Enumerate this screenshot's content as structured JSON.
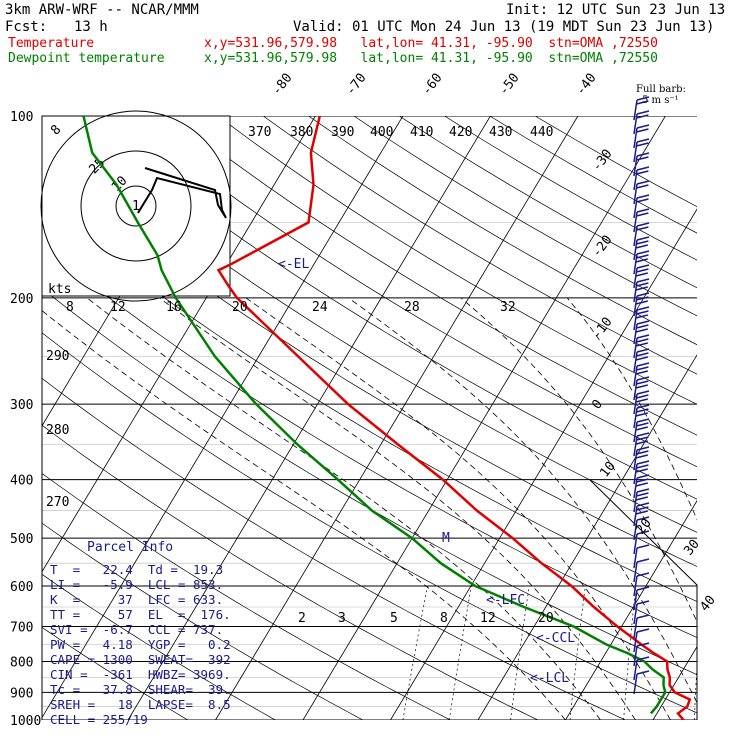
{
  "header": {
    "model": "3km ARW-WRF -- NCAR/MMM",
    "init": "Init: 12 UTC Sun 23 Jun 13",
    "fcst_label": "Fcst:",
    "fcst_value": "13 h",
    "valid": "Valid: 01 UTC Mon 24 Jun 13 (19 MDT Sun 23 Jun 13)",
    "temp_label": "Temperature",
    "temp_info": "x,y=531.96,579.98   lat,lon= 41.31, -95.90  stn=OMA ,72550",
    "dew_label": "Dewpoint temperature",
    "dew_info": "x,y=531.96,579.98   lat,lon= 41.31, -95.90  stn=OMA ,72550",
    "barb_legend_1": "Full barb:",
    "barb_legend_2": "5 m s⁻¹"
  },
  "colors": {
    "temperature": "#e00000",
    "dewpoint": "#008000",
    "parcel": "#1a1a8a",
    "grid": "#000000"
  },
  "pressure_labels": [
    "100",
    "200",
    "300",
    "400",
    "500",
    "600",
    "700",
    "800",
    "900",
    "1000"
  ],
  "isotherm_labels": [
    "-80",
    "-70",
    "-60",
    "-50",
    "-40",
    "-30",
    "-20",
    "-10",
    "0",
    "10",
    "20",
    "30",
    "40"
  ],
  "theta_labels": [
    "370",
    "380",
    "390",
    "400",
    "410",
    "420",
    "430",
    "440"
  ],
  "mixing_ratio_labels": [
    "2",
    "3",
    "5",
    "8",
    "12",
    "20"
  ],
  "hodograph_speed_labels": [
    "8",
    "12",
    "16",
    "20",
    "24",
    "28",
    "32"
  ],
  "hodograph_ring_labels": [
    "8",
    "25",
    "10",
    "1"
  ],
  "hodo_kts": "kts",
  "dry_adiabat_labels": [
    "290",
    "280",
    "270"
  ],
  "level_markers": {
    "el": "<-EL",
    "lfc": "<-LFC",
    "ccl": "<-CCL",
    "lcl": "<-LCL",
    "m": "M"
  },
  "parcel": {
    "title": "Parcel Info",
    "rows": [
      "T  =   22.4  Td =  19.3",
      "LI =   -5.9  LCL = 853.",
      "K  =     37  LFC = 633.",
      "TT =     57  EL  =  176.",
      "SVI =  -6.7  CCL = 737.",
      "PW =   4.18  YGP =   0.2",
      "CAPE = 1300  SWEAT=  392",
      "CIN =  -361  HWBZ= 3969.",
      "Tc =   37.8  SHEAR=  39.",
      "SREH =   18  LAPSE=  8.5",
      "CELL = 255/19"
    ]
  },
  "chart_data": {
    "type": "line",
    "title": "",
    "xlabel": "",
    "ylabel": "",
    "y_log_pressure_hPa": [
      100,
      1000
    ],
    "series": [
      {
        "name": "Temperature",
        "pressure": [
          1000,
          975,
          950,
          925,
          900,
          875,
          850,
          825,
          800,
          775,
          750,
          700,
          650,
          600,
          550,
          500,
          450,
          400,
          350,
          300,
          250,
          200,
          190,
          180,
          176,
          150,
          130,
          115,
          100
        ],
        "temperature": [
          23.5,
          22.4,
          23.0,
          22.8,
          20.6,
          19.5,
          19.0,
          18.2,
          17.6,
          15.5,
          13.5,
          9.5,
          5.5,
          1.5,
          -3.5,
          -8.5,
          -14.5,
          -20.5,
          -28.0,
          -36.5,
          -45.5,
          -56.5,
          -58.5,
          -60.5,
          -59.5,
          -53.5,
          -55.5,
          -58.0,
          -59.5
        ]
      },
      {
        "name": "Dewpoint temperature",
        "pressure": [
          975,
          950,
          925,
          900,
          875,
          850,
          825,
          800,
          775,
          750,
          700,
          650,
          600,
          550,
          500,
          450,
          400,
          350,
          300,
          250,
          200,
          180,
          170,
          150,
          130,
          115,
          100
        ],
        "dewpoint": [
          19.3,
          19.5,
          19.5,
          19.5,
          18.8,
          18.3,
          16.5,
          15.0,
          12.5,
          9.5,
          4.5,
          -2.5,
          -9.5,
          -15.0,
          -20.0,
          -26.5,
          -32.5,
          -39.5,
          -47.0,
          -55.0,
          -63.5,
          -67.0,
          -68.5,
          -73.0,
          -78.0,
          -83.0,
          -86.5
        ]
      }
    ]
  }
}
